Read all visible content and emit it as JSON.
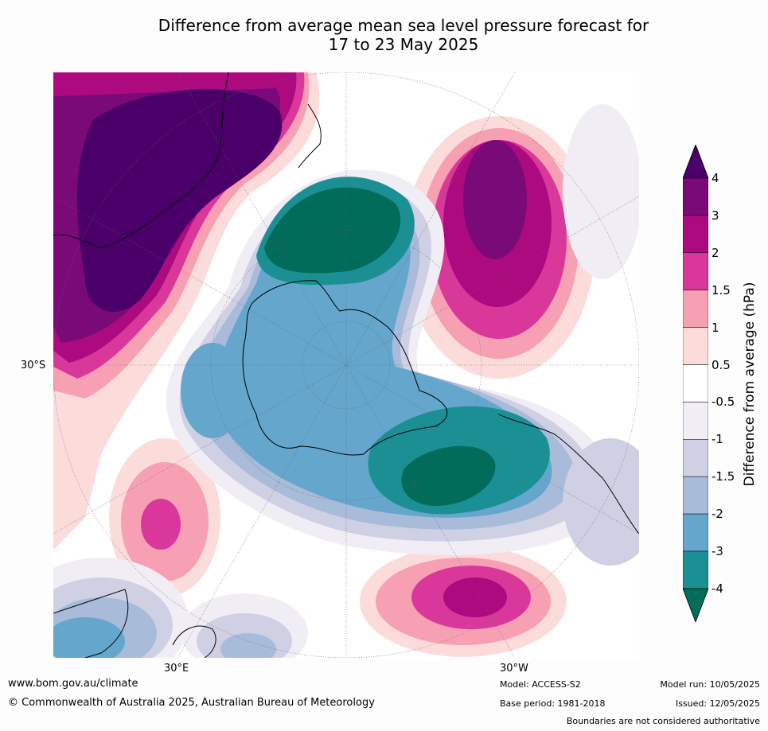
{
  "title_line1": "Difference from average mean sea level pressure forecast for",
  "title_line2": "17 to 23 May 2025",
  "map": {
    "lat_label": "30°S",
    "lon_label_left": "30°E",
    "lon_label_right": "30°W",
    "centre": "South Pole"
  },
  "colorbar": {
    "title": "Difference from average (hPa)",
    "tick_labels": [
      "4",
      "3",
      "2",
      "1.5",
      "1",
      "0.5",
      "-0.5",
      "-1",
      "-1.5",
      "-2",
      "-3",
      "-4"
    ],
    "levels": [
      {
        "range": ">4",
        "color": "#4a0068"
      },
      {
        "range": "3 to 4",
        "color": "#7a0a78"
      },
      {
        "range": "2 to 3",
        "color": "#ad0a80"
      },
      {
        "range": "1.5 to 2",
        "color": "#d9389a"
      },
      {
        "range": "1 to 1.5",
        "color": "#f7a0b4"
      },
      {
        "range": "0.5 to 1",
        "color": "#fcdbdb"
      },
      {
        "range": "-0.5 to 0.5",
        "color": "#ffffff"
      },
      {
        "range": "-1 to -0.5",
        "color": "#f1edf4"
      },
      {
        "range": "-1.5 to -1",
        "color": "#d0d0e5"
      },
      {
        "range": "-2 to -1.5",
        "color": "#a8bbd9"
      },
      {
        "range": "-3 to -2",
        "color": "#64a6cc"
      },
      {
        "range": "-4 to -3",
        "color": "#1a9095"
      },
      {
        "range": "<-4",
        "color": "#016c59"
      }
    ]
  },
  "footer": {
    "website": "www.bom.gov.au/climate",
    "copyright": "© Commonwealth of Australia 2025, Australian Bureau of Meteorology",
    "model": "Model: ACCESS-S2",
    "base_period": "Base period: 1981-2018",
    "model_run": "Model run: 10/05/2025",
    "issued": "Issued: 12/05/2025",
    "disclaimer": "Boundaries are not considered authoritative"
  }
}
